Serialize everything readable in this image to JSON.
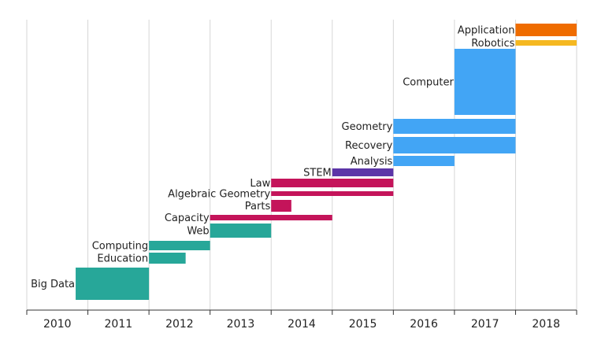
{
  "chart_data": {
    "type": "bar",
    "orientation": "horizontal-timeline",
    "grid": true,
    "xlim": [
      2010,
      2019
    ],
    "x_ticks": [
      "2010",
      "2011",
      "2012",
      "2013",
      "2014",
      "2015",
      "2016",
      "2017",
      "2018"
    ],
    "series": [
      {
        "label": "Big Data",
        "start": 2010.8,
        "end": 2012.0,
        "color": "#27a799"
      },
      {
        "label": "Education",
        "start": 2012.0,
        "end": 2012.6,
        "color": "#27a799"
      },
      {
        "label": "Computing",
        "start": 2012.0,
        "end": 2013.0,
        "color": "#27a799"
      },
      {
        "label": "Web",
        "start": 2013.0,
        "end": 2014.0,
        "color": "#27a799"
      },
      {
        "label": "Capacity",
        "start": 2013.0,
        "end": 2015.0,
        "color": "#c4145a"
      },
      {
        "label": "Parts",
        "start": 2014.0,
        "end": 2014.33,
        "color": "#c4145a"
      },
      {
        "label": "Algebraic Geometry",
        "start": 2014.0,
        "end": 2016.0,
        "color": "#c4145a"
      },
      {
        "label": "Law",
        "start": 2014.0,
        "end": 2016.0,
        "color": "#c4145a"
      },
      {
        "label": "STEM",
        "start": 2015.0,
        "end": 2016.0,
        "color": "#5c35a8"
      },
      {
        "label": "Analysis",
        "start": 2016.0,
        "end": 2017.0,
        "color": "#42a5f5"
      },
      {
        "label": "Recovery",
        "start": 2016.0,
        "end": 2018.0,
        "color": "#42a5f5"
      },
      {
        "label": "Geometry",
        "start": 2016.0,
        "end": 2018.0,
        "color": "#42a5f5"
      },
      {
        "label": "Computer",
        "start": 2017.0,
        "end": 2018.0,
        "color": "#42a5f5"
      },
      {
        "label": "Robotics",
        "start": 2018.0,
        "end": 2019.0,
        "color": "#f5b821"
      },
      {
        "label": "Application",
        "start": 2018.0,
        "end": 2019.0,
        "color": "#ef6c00"
      }
    ]
  }
}
